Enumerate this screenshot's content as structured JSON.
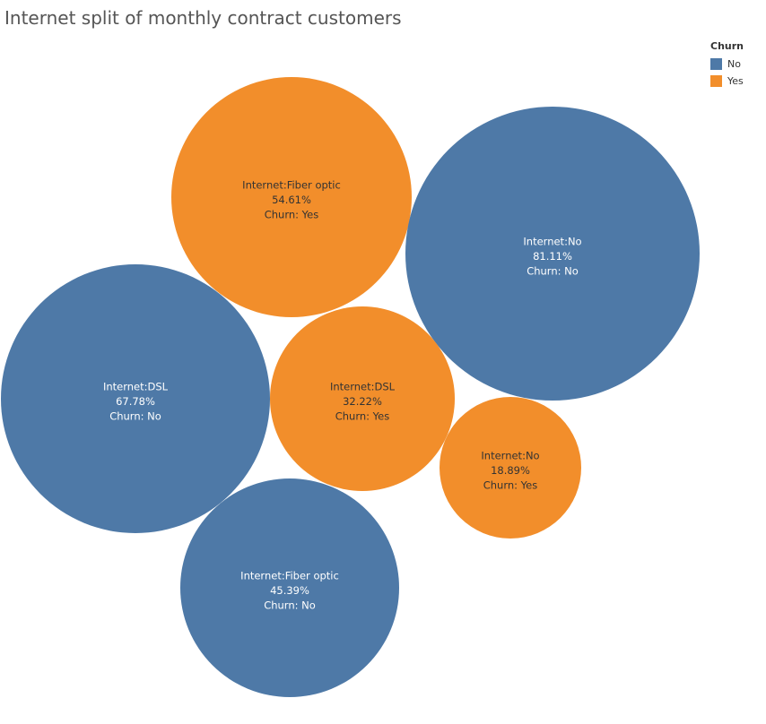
{
  "chart_data": {
    "type": "bubble",
    "title": "Internet split of monthly contract customers",
    "legend": {
      "title": "Churn",
      "placement": "top-right",
      "items": [
        {
          "label": "No",
          "color": "#4e79a7"
        },
        {
          "label": "Yes",
          "color": "#f28e2b"
        }
      ]
    },
    "bubbles": [
      {
        "internet": "Internet:Fiber optic",
        "percent": "54.61%",
        "churn": "Churn: Yes",
        "churn_key": "Yes",
        "value": 54.61
      },
      {
        "internet": "Internet:No",
        "percent": "81.11%",
        "churn": "Churn: No",
        "churn_key": "No",
        "value": 81.11
      },
      {
        "internet": "Internet:DSL",
        "percent": "67.78%",
        "churn": "Churn: No",
        "churn_key": "No",
        "value": 67.78
      },
      {
        "internet": "Internet:DSL",
        "percent": "32.22%",
        "churn": "Churn: Yes",
        "churn_key": "Yes",
        "value": 32.22
      },
      {
        "internet": "Internet:No",
        "percent": "18.89%",
        "churn": "Churn: Yes",
        "churn_key": "Yes",
        "value": 18.89
      },
      {
        "internet": "Internet:Fiber optic",
        "percent": "45.39%",
        "churn": "Churn: No",
        "churn_key": "No",
        "value": 45.39
      }
    ]
  }
}
